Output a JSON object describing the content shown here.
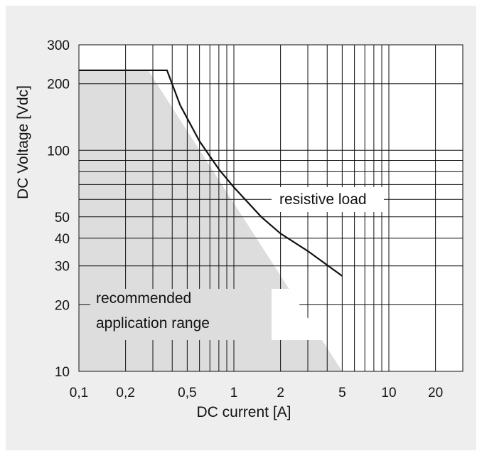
{
  "chart_data": {
    "type": "line",
    "title": "",
    "xlabel": "DC current [A]",
    "ylabel": "DC Voltage [Vdc]",
    "x_scale": "log",
    "y_scale": "log",
    "xlim": [
      0.1,
      30
    ],
    "ylim": [
      10,
      300
    ],
    "grid": true,
    "x_tick_labels": [
      "0,1",
      "0,2",
      "0,5",
      "1",
      "2",
      "5",
      "10",
      "20"
    ],
    "y_tick_labels": [
      "10",
      "20",
      "30",
      "40",
      "50",
      "100",
      "200",
      "300"
    ],
    "series": [
      {
        "name": "resistive load",
        "x": [
          0.1,
          0.37,
          0.45,
          0.6,
          0.8,
          1.0,
          1.5,
          2.0,
          3.0,
          5.0
        ],
        "y": [
          230,
          230,
          160,
          110,
          82,
          68,
          50,
          42,
          35,
          27
        ]
      }
    ],
    "region": {
      "name": "recommended application range",
      "x": [
        0.1,
        0.28,
        5.0,
        5.0,
        0.1
      ],
      "y": [
        230,
        230,
        10,
        10,
        10
      ]
    },
    "annotations": [
      "resistive load",
      "recommended",
      "application range"
    ],
    "colors": {
      "panel_background": "#eeeeee",
      "plot_background": "#ffffff",
      "region_fill": "#dddddd",
      "grid": "#111111",
      "curve": "#111111"
    }
  }
}
